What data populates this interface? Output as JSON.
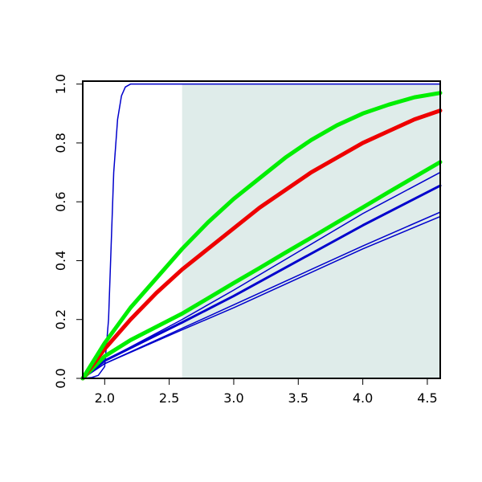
{
  "chart_data": {
    "type": "line",
    "xlim": [
      1.83,
      4.6
    ],
    "ylim": [
      0,
      1.01
    ],
    "xticks": [
      {
        "value": 2.0,
        "label": "2.0"
      },
      {
        "value": 2.5,
        "label": "2.5"
      },
      {
        "value": 3.0,
        "label": "3.0"
      },
      {
        "value": 3.5,
        "label": "3.5"
      },
      {
        "value": 4.0,
        "label": "4.0"
      },
      {
        "value": 4.5,
        "label": "4.5"
      }
    ],
    "yticks": [
      {
        "value": 0,
        "label": "0.0"
      },
      {
        "value": 0.2,
        "label": "0.2"
      },
      {
        "value": 0.4,
        "label": "0.4"
      },
      {
        "value": 0.6,
        "label": "0.6"
      },
      {
        "value": 0.8,
        "label": "0.8"
      },
      {
        "value": 1.0,
        "label": "1.0"
      }
    ],
    "highlight": {
      "x": [
        2.6,
        4.6
      ],
      "color": "#dfecea"
    },
    "series": [
      {
        "color": "#0000cc",
        "linewidth": 1.5,
        "x": [
          1.83,
          2.0,
          2.6,
          3.0,
          3.5,
          4.0,
          4.6
        ],
        "values": [
          0,
          0.05,
          0.165,
          0.24,
          0.34,
          0.44,
          0.55
        ]
      },
      {
        "color": "#0000cc",
        "linewidth": 1.5,
        "x": [
          1.83,
          2.0,
          2.6,
          3.0,
          3.5,
          4.0,
          4.6
        ],
        "values": [
          0,
          0.05,
          0.17,
          0.25,
          0.35,
          0.45,
          0.565
        ]
      },
      {
        "color": "#0000cc",
        "linewidth": 3,
        "x": [
          1.83,
          2.0,
          2.6,
          3.0,
          3.5,
          4.0,
          4.6
        ],
        "values": [
          0,
          0.06,
          0.19,
          0.28,
          0.4,
          0.52,
          0.655
        ]
      },
      {
        "color": "#0000cc",
        "linewidth": 1.5,
        "x": [
          1.83,
          2.0,
          2.6,
          3.0,
          3.5,
          4.0,
          4.6
        ],
        "values": [
          0,
          0.06,
          0.2,
          0.3,
          0.43,
          0.56,
          0.7
        ]
      },
      {
        "color": "#0000cc",
        "linewidth": 1.5,
        "x": [
          1.83,
          1.9,
          1.95,
          2.0,
          2.03,
          2.05,
          2.07,
          2.1,
          2.13,
          2.16,
          2.2,
          2.3,
          4.6
        ],
        "values": [
          0,
          0.003,
          0.01,
          0.04,
          0.2,
          0.45,
          0.7,
          0.88,
          0.96,
          0.99,
          1,
          1,
          1
        ]
      },
      {
        "color": "#00ee00",
        "linewidth": 5,
        "x": [
          1.83,
          2.0,
          2.2,
          2.4,
          2.6,
          2.8,
          3.0,
          3.2,
          3.4,
          3.6,
          3.8,
          4.0,
          4.2,
          4.4,
          4.6
        ],
        "values": [
          0,
          0.075,
          0.13,
          0.175,
          0.22,
          0.272,
          0.324,
          0.375,
          0.427,
          0.478,
          0.53,
          0.581,
          0.633,
          0.684,
          0.735
        ]
      },
      {
        "color": "#ee0000",
        "linewidth": 5,
        "x": [
          1.83,
          2.0,
          2.2,
          2.4,
          2.6,
          2.8,
          3.0,
          3.2,
          3.4,
          3.6,
          3.8,
          4.0,
          4.2,
          4.4,
          4.6
        ],
        "values": [
          0,
          0.1,
          0.2,
          0.29,
          0.37,
          0.44,
          0.51,
          0.58,
          0.64,
          0.7,
          0.75,
          0.8,
          0.84,
          0.88,
          0.91
        ]
      },
      {
        "color": "#00ee00",
        "linewidth": 5,
        "x": [
          1.83,
          2.0,
          2.2,
          2.4,
          2.6,
          2.8,
          3.0,
          3.2,
          3.4,
          3.6,
          3.8,
          4.0,
          4.2,
          4.4,
          4.6
        ],
        "values": [
          0,
          0.12,
          0.24,
          0.34,
          0.44,
          0.53,
          0.61,
          0.68,
          0.75,
          0.81,
          0.86,
          0.9,
          0.93,
          0.955,
          0.97
        ]
      }
    ]
  }
}
